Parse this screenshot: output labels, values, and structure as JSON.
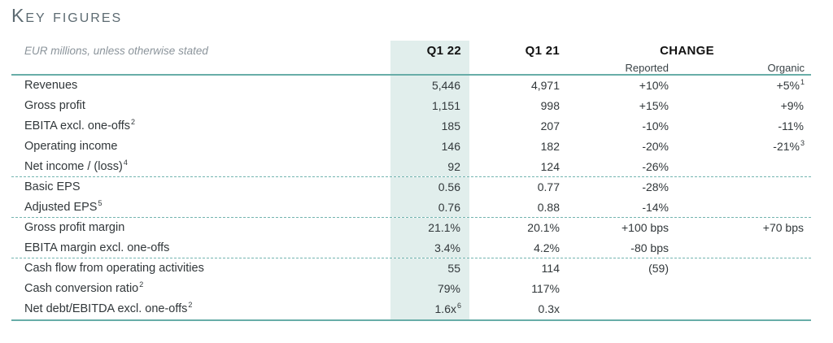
{
  "title": "Key figures",
  "table": {
    "subtitle": "EUR millions, unless otherwise stated",
    "columns": {
      "q1_22": "Q1 22",
      "q1_21": "Q1 21",
      "change": "CHANGE",
      "reported": "Reported",
      "organic": "Organic"
    },
    "accent_colors": {
      "rule_teal": "#68ada8",
      "dashed_teal": "#74b5b0",
      "highlight_column": "#e1eeec"
    },
    "rows": [
      {
        "label": "Revenues",
        "q1_22": "5,446",
        "q1_21": "4,971",
        "reported": "+10%",
        "organic": "+5%",
        "organic_sup": "1"
      },
      {
        "label": "Gross profit",
        "q1_22": "1,151",
        "q1_21": "998",
        "reported": "+15%",
        "organic": "+9%"
      },
      {
        "label": "EBITA excl. one-offs",
        "label_sup": "2",
        "q1_22": "185",
        "q1_21": "207",
        "reported": "-10%",
        "organic": "-11%"
      },
      {
        "label": "Operating income",
        "q1_22": "146",
        "q1_21": "182",
        "reported": "-20%",
        "organic": "-21%",
        "organic_sup": "3"
      },
      {
        "label": "Net income / (loss)",
        "label_sup": "4",
        "q1_22": "92",
        "q1_21": "124",
        "reported": "-26%"
      },
      {
        "label": "Basic EPS",
        "q1_22": "0.56",
        "q1_21": "0.77",
        "reported": "-28%"
      },
      {
        "label": "Adjusted EPS",
        "label_sup": "5",
        "q1_22": "0.76",
        "q1_21": "0.88",
        "reported": "-14%"
      },
      {
        "label": "Gross profit margin",
        "q1_22": "21.1%",
        "q1_21": "20.1%",
        "reported": "+100 bps",
        "organic": "+70 bps"
      },
      {
        "label": "EBITA margin excl. one-offs",
        "q1_22": "3.4%",
        "q1_21": "4.2%",
        "reported": "-80 bps"
      },
      {
        "label": "Cash flow from operating activities",
        "q1_22": "55",
        "q1_21": "114",
        "reported": "(59)"
      },
      {
        "label": "Cash conversion ratio",
        "label_sup": "2",
        "q1_22": "79%",
        "q1_21": "117%"
      },
      {
        "label": "Net debt/EBITDA excl. one-offs",
        "label_sup": "2",
        "q1_22": "1.6x",
        "q1_22_sup": "6",
        "q1_21": "0.3x"
      }
    ]
  }
}
